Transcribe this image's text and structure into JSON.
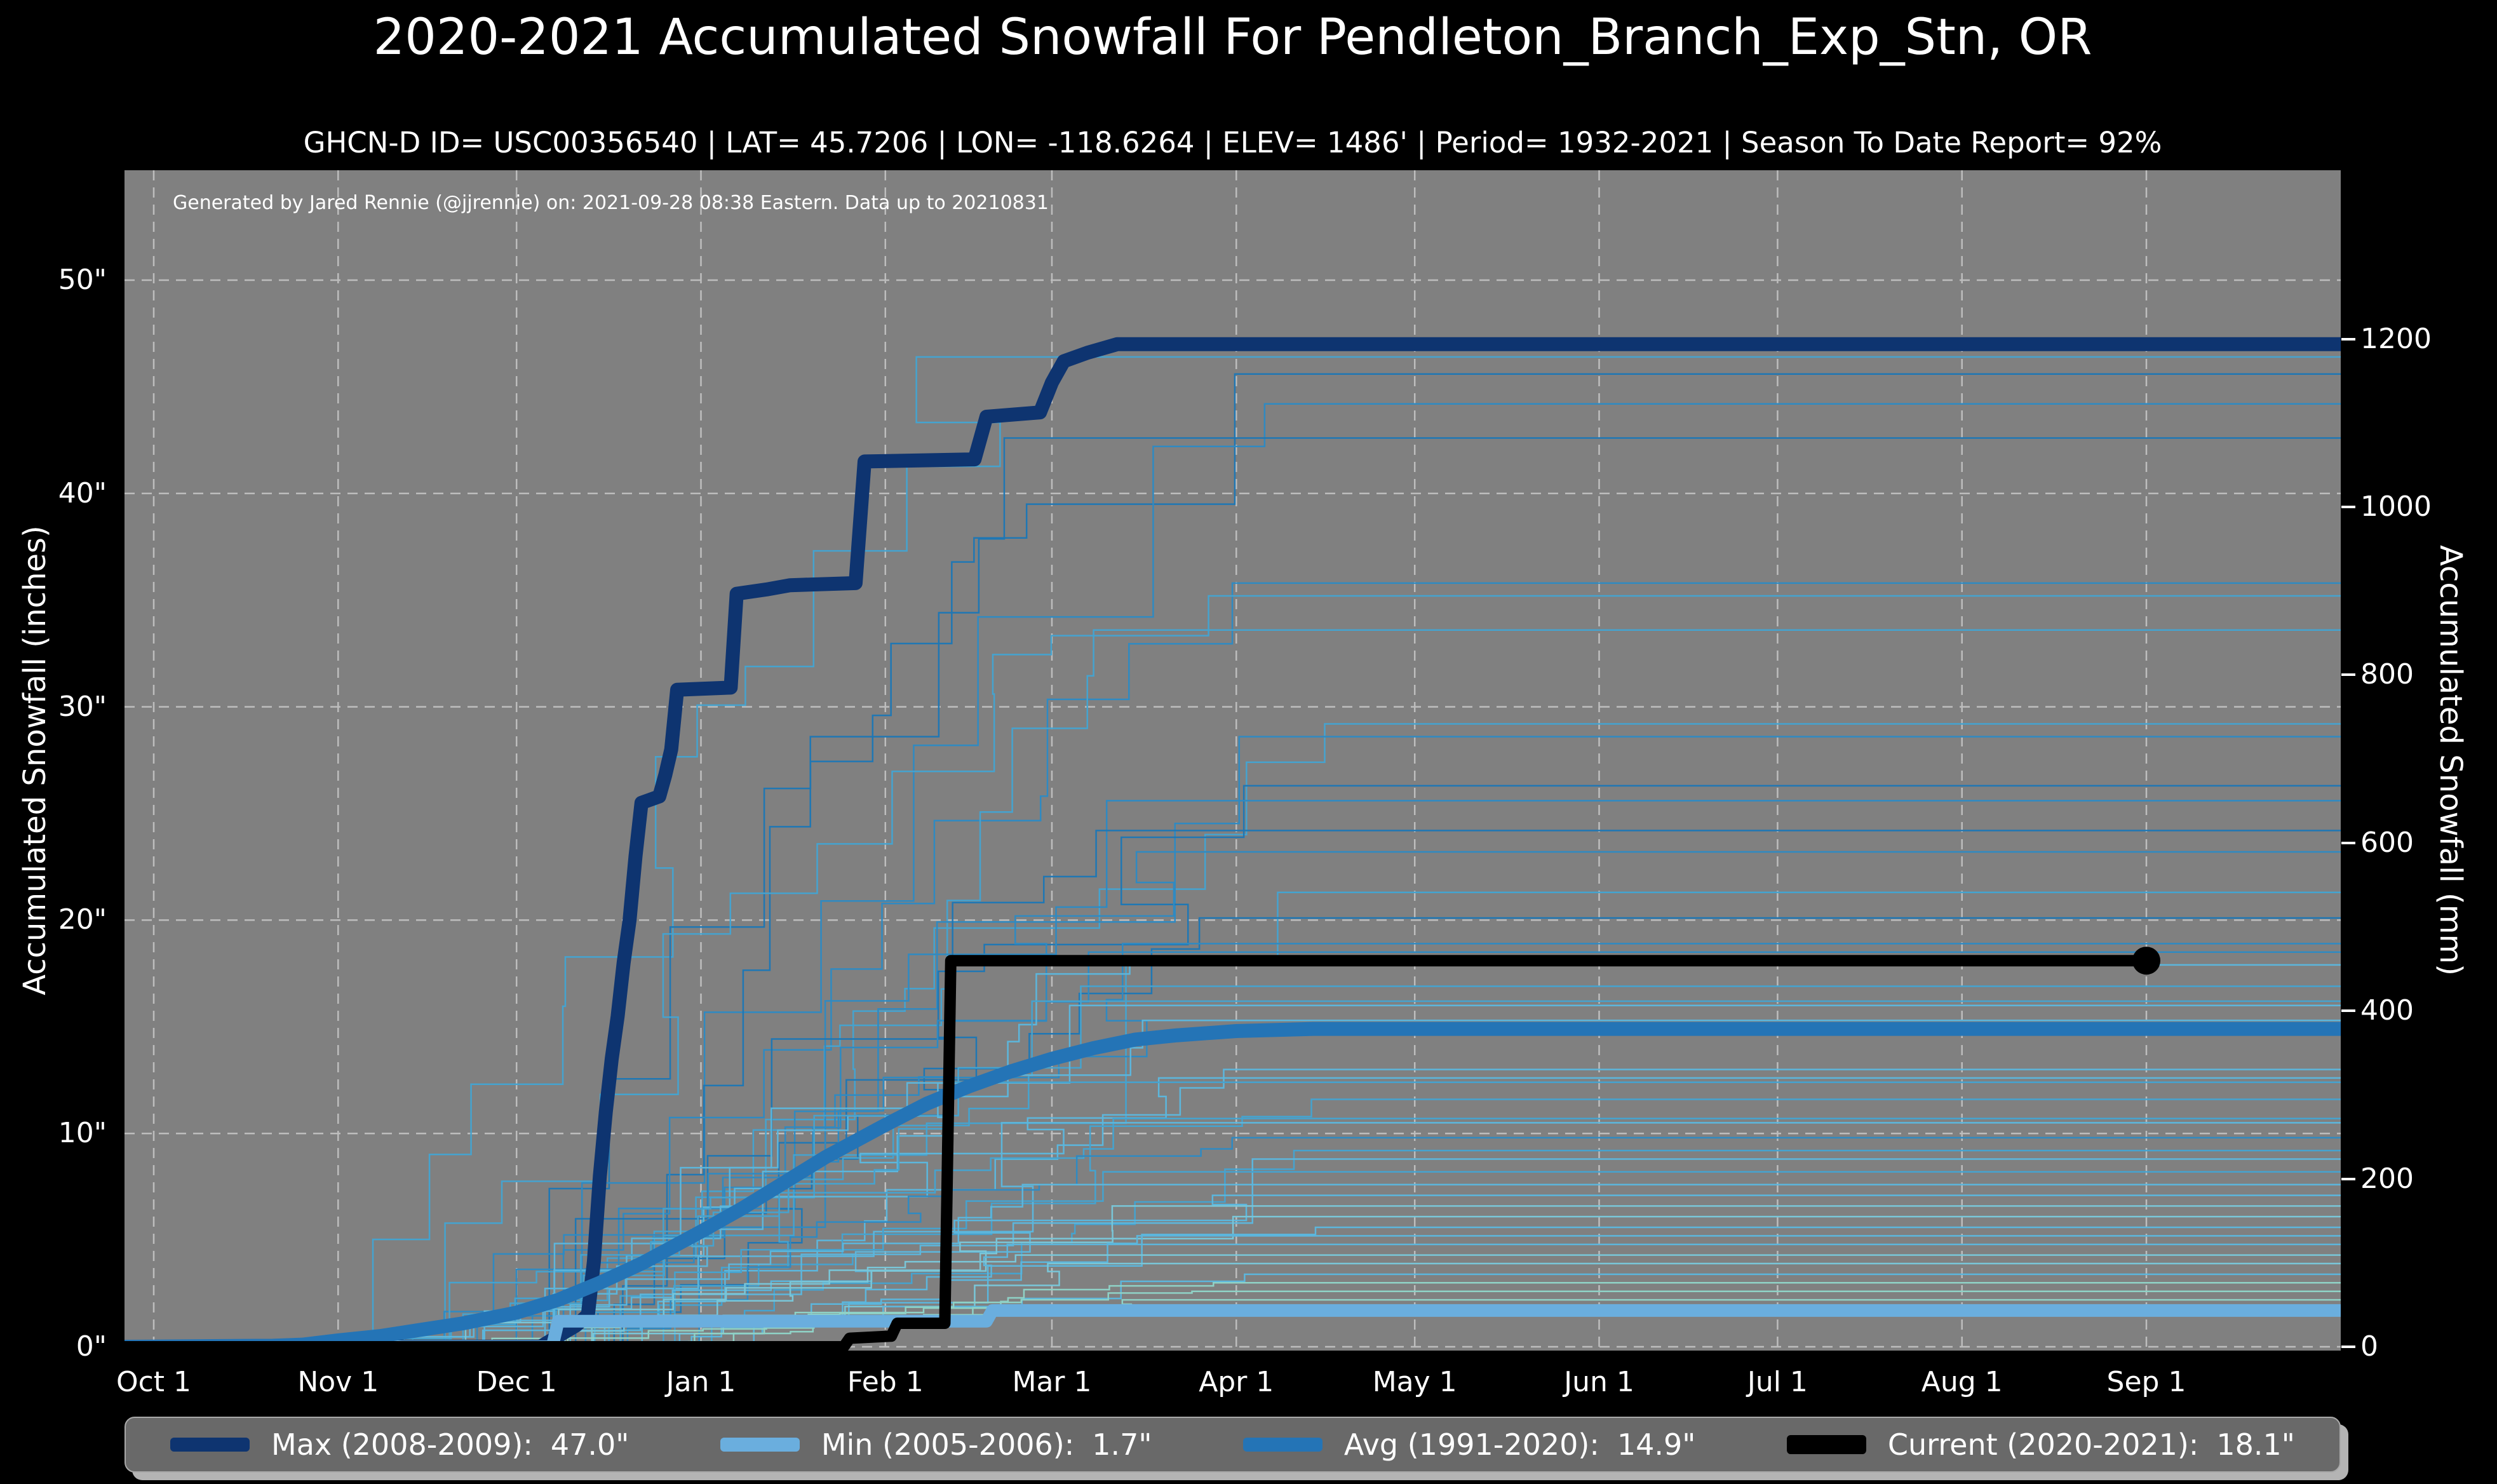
{
  "title": "2020-2021 Accumulated Snowfall For Pendleton_Branch_Exp_Stn, OR",
  "subtitle": "GHCN-D ID= USC00356540 | LAT= 45.7206 | LON= -118.6264 | ELEV= 1486' | Period= 1932-2021 | Season To Date Report= 92%",
  "annotation": "Generated by Jared Rennie (@jjrennie) on: 2021-09-28 08:38 Eastern. Data up to 20210831",
  "colors": {
    "figure_bg": "#000000",
    "plot_bg": "#808080",
    "grid": "#bdbdbd",
    "text": "#ffffff",
    "max_line": "#0e3470",
    "min_line": "#6aaede",
    "avg_line": "#2474b6",
    "current_line": "#000000"
  },
  "axes": {
    "left_label": "Accumulated Snowfall (inches)",
    "right_label": "Accumulated Snowfall (mm)",
    "left_ticks": [
      {
        "label": "0\"",
        "value": 0
      },
      {
        "label": "10\"",
        "value": 10
      },
      {
        "label": "20\"",
        "value": 20
      },
      {
        "label": "30\"",
        "value": 30
      },
      {
        "label": "40\"",
        "value": 40
      },
      {
        "label": "50\"",
        "value": 50
      }
    ],
    "right_ticks": [
      {
        "label": "0",
        "mm": 0
      },
      {
        "label": "200",
        "mm": 200
      },
      {
        "label": "400",
        "mm": 400
      },
      {
        "label": "600",
        "mm": 600
      },
      {
        "label": "800",
        "mm": 800
      },
      {
        "label": "1000",
        "mm": 1000
      },
      {
        "label": "1200",
        "mm": 1200
      }
    ],
    "x_ticks": [
      {
        "label": "Oct 1",
        "day": 0
      },
      {
        "label": "Nov 1",
        "day": 31
      },
      {
        "label": "Dec 1",
        "day": 61
      },
      {
        "label": "Jan 1",
        "day": 92
      },
      {
        "label": "Feb 1",
        "day": 123
      },
      {
        "label": "Mar 1",
        "day": 151
      },
      {
        "label": "Apr 1",
        "day": 182
      },
      {
        "label": "May 1",
        "day": 212
      },
      {
        "label": "Jun 1",
        "day": 243
      },
      {
        "label": "Jul 1",
        "day": 273
      },
      {
        "label": "Aug 1",
        "day": 304
      },
      {
        "label": "Sep 1",
        "day": 335
      }
    ],
    "grid_dashed": true
  },
  "legend": {
    "items": [
      {
        "label": "Max (2008-2009):",
        "value": "47.0\"",
        "color": "#0e3470",
        "thickness": 22
      },
      {
        "label": "Min (2005-2006):",
        "value": "1.7\"",
        "color": "#6aaede",
        "thickness": 22
      },
      {
        "label": "Avg (1991-2020):",
        "value": "14.9\"",
        "color": "#2474b6",
        "thickness": 22
      },
      {
        "label": "Current (2020-2021):",
        "value": "18.1\"",
        "color": "#000000",
        "thickness": 30
      }
    ]
  },
  "chart_data": {
    "type": "line",
    "x_unit": "days since Oct 1",
    "xlim_days": [
      -5,
      368
    ],
    "ylim_inches": [
      -0.2,
      55.2
    ],
    "title": "2020-2021 Accumulated Snowfall For Pendleton_Branch_Exp_Stn, OR",
    "xlabel": "",
    "ylabel_left": "Accumulated Snowfall (inches)",
    "ylabel_right": "Accumulated Snowfall (mm)",
    "series": [
      {
        "name": "Max (2008-2009)",
        "final_inches": 47.0,
        "color": "#0e3470",
        "width": 22,
        "points": [
          [
            -5,
            0
          ],
          [
            65,
            0
          ],
          [
            68,
            0.5
          ],
          [
            71,
            1.0
          ],
          [
            73,
            1.5
          ],
          [
            74,
            4
          ],
          [
            75,
            8
          ],
          [
            76,
            11
          ],
          [
            77,
            13.5
          ],
          [
            78,
            15.5
          ],
          [
            78.6,
            17
          ],
          [
            79,
            18
          ],
          [
            80,
            20
          ],
          [
            81,
            23
          ],
          [
            82,
            25.5
          ],
          [
            85,
            25.8
          ],
          [
            86,
            26.8
          ],
          [
            87,
            28
          ],
          [
            88,
            30.8
          ],
          [
            97,
            30.9
          ],
          [
            98,
            35.3
          ],
          [
            103,
            35.5
          ],
          [
            107,
            35.7
          ],
          [
            118,
            35.8
          ],
          [
            119.5,
            41.5
          ],
          [
            138,
            41.6
          ],
          [
            140,
            43.6
          ],
          [
            149,
            43.8
          ],
          [
            151,
            45.2
          ],
          [
            153,
            46.2
          ],
          [
            157,
            46.6
          ],
          [
            162,
            47.0
          ],
          [
            368,
            47.0
          ]
        ]
      },
      {
        "name": "Min (2005-2006)",
        "final_inches": 1.7,
        "color": "#6aaede",
        "width": 20,
        "points": [
          [
            -5,
            0
          ],
          [
            67,
            0
          ],
          [
            68,
            1.2
          ],
          [
            140,
            1.2
          ],
          [
            141,
            1.7
          ],
          [
            368,
            1.7
          ]
        ]
      },
      {
        "name": "Avg (1991-2020)",
        "final_inches": 14.9,
        "color": "#2474b6",
        "width": 22,
        "points": [
          [
            -5,
            0
          ],
          [
            20,
            0.05
          ],
          [
            25,
            0.1
          ],
          [
            31,
            0.3
          ],
          [
            38,
            0.5
          ],
          [
            45,
            0.8
          ],
          [
            52,
            1.1
          ],
          [
            61,
            1.6
          ],
          [
            68,
            2.2
          ],
          [
            75,
            3.0
          ],
          [
            82,
            3.9
          ],
          [
            92,
            5.4
          ],
          [
            99,
            6.5
          ],
          [
            106,
            7.7
          ],
          [
            113,
            8.9
          ],
          [
            123,
            10.4
          ],
          [
            130,
            11.4
          ],
          [
            137,
            12.2
          ],
          [
            144,
            12.9
          ],
          [
            151,
            13.5
          ],
          [
            158,
            14.0
          ],
          [
            165,
            14.4
          ],
          [
            172,
            14.6
          ],
          [
            182,
            14.8
          ],
          [
            195,
            14.9
          ],
          [
            368,
            14.9
          ]
        ]
      },
      {
        "name": "Current (2020-2021)",
        "final_inches": 18.1,
        "color": "#000000",
        "width": 18,
        "end_dot_day": 335,
        "end_dot_radius": 22,
        "points": [
          [
            -5,
            0
          ],
          [
            116,
            0
          ],
          [
            117,
            0.4
          ],
          [
            124,
            0.5
          ],
          [
            125,
            1.1
          ],
          [
            133,
            1.1
          ],
          [
            134,
            18.1
          ],
          [
            335,
            18.1
          ]
        ]
      }
    ],
    "background_years": {
      "count": 46,
      "description": "thin stepped lines, one per season 1932-2021",
      "line_width": 2.5,
      "shades": [
        "#1f77b4",
        "#2f8ac2",
        "#45a3cf",
        "#5cb6dc",
        "#79c6d8",
        "#8fd2c6"
      ],
      "final_values_inches": [
        46.4,
        45.6,
        44.2,
        42.6,
        35.8,
        35.2,
        33.6,
        29.2,
        28.6,
        26.3,
        25.6,
        24.2,
        23.2,
        21.3,
        20.1,
        18.9,
        18.5,
        17.9,
        16.9,
        16.2,
        16.0,
        15.3,
        13.0,
        12.6,
        12.4,
        11.6,
        10.7,
        10.5,
        9.8,
        9.2,
        8.8,
        8.2,
        7.6,
        7.1,
        6.6,
        6.1,
        5.6,
        5.2,
        4.8,
        4.3,
        3.9,
        3.4,
        3.0,
        2.6,
        2.2,
        1.9
      ]
    }
  }
}
